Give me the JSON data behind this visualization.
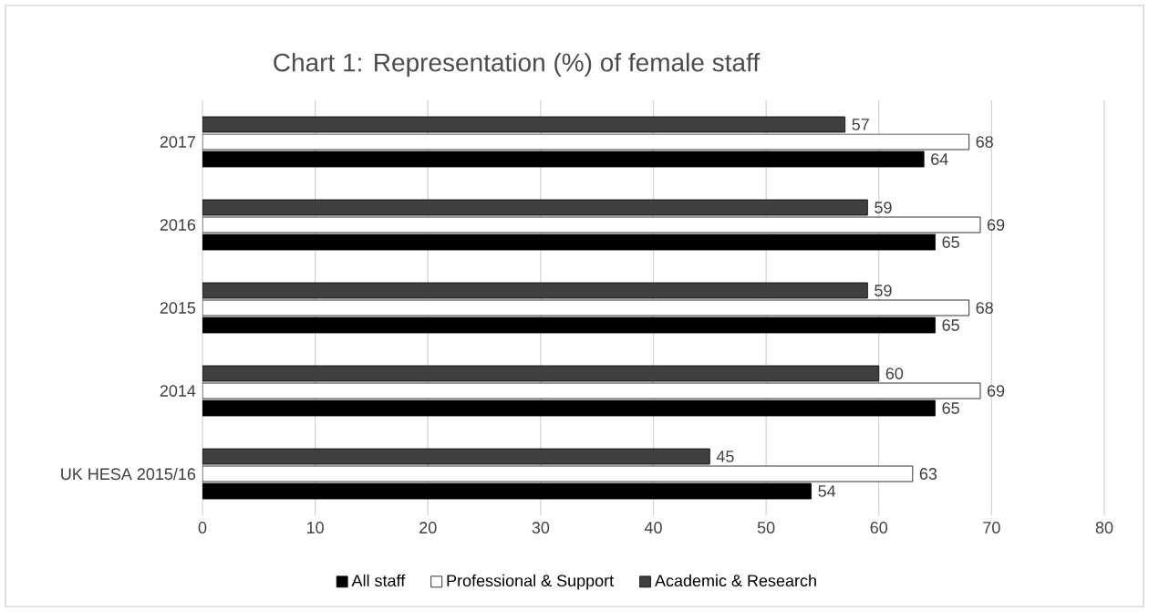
{
  "chart_data": {
    "type": "bar",
    "orientation": "horizontal",
    "title": "Chart 1: Representation (%) of female staff",
    "categories": [
      "2017",
      "2016",
      "2015",
      "2014",
      "UK HESA 2015/16"
    ],
    "series": [
      {
        "name": "All staff",
        "color": "#000000",
        "values": [
          64,
          65,
          65,
          65,
          54
        ]
      },
      {
        "name": "Professional & Support",
        "color": "#ffffff",
        "values": [
          68,
          69,
          68,
          69,
          63
        ]
      },
      {
        "name": "Academic & Research",
        "color": "#404040",
        "values": [
          57,
          59,
          59,
          60,
          45
        ]
      }
    ],
    "xlim": [
      0,
      80
    ],
    "xticks": [
      0,
      10,
      20,
      30,
      40,
      50,
      60,
      70,
      80
    ],
    "grid": "x",
    "legend": "bottom",
    "data_labels": true
  }
}
